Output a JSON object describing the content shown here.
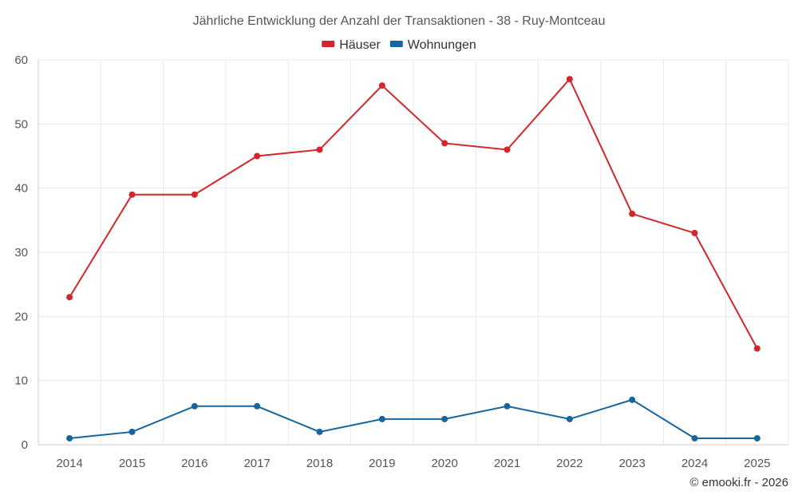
{
  "chart_data": {
    "type": "line",
    "title": "Jährliche Entwicklung der Anzahl der Transaktionen - 38 - Ruy-Montceau",
    "categories": [
      "2014",
      "2015",
      "2016",
      "2017",
      "2018",
      "2019",
      "2020",
      "2021",
      "2022",
      "2023",
      "2024",
      "2025"
    ],
    "series": [
      {
        "name": "Häuser",
        "color": "#d3262b",
        "values": [
          23,
          39,
          39,
          45,
          46,
          56,
          47,
          46,
          57,
          36,
          33,
          15
        ]
      },
      {
        "name": "Wohnungen",
        "color": "#1565a0",
        "values": [
          1,
          2,
          6,
          6,
          2,
          4,
          4,
          6,
          4,
          7,
          1,
          1
        ]
      }
    ],
    "ylim": [
      0,
      60
    ],
    "yticks": [
      "0",
      "10",
      "20",
      "30",
      "40",
      "50",
      "60"
    ],
    "xlabel": "",
    "ylabel": "",
    "grid": true,
    "legend_position": "top-center"
  },
  "credit": "© emooki.fr - 2026"
}
